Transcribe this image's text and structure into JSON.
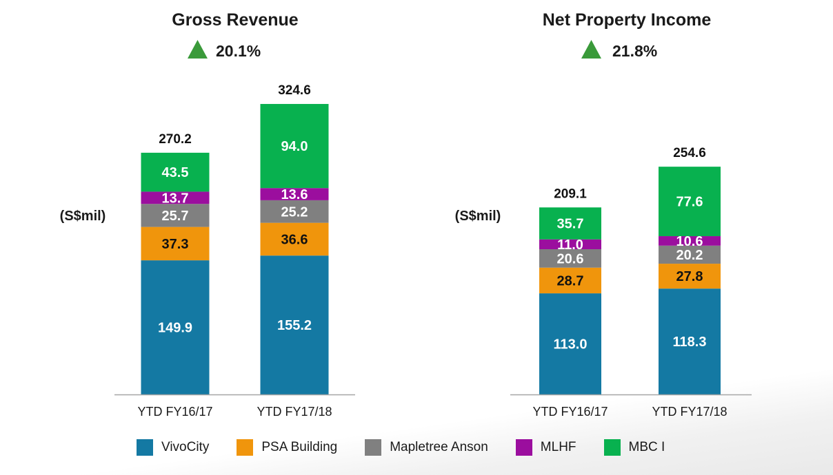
{
  "chart_data": [
    {
      "type": "bar",
      "stacked": true,
      "title": "Gross Revenue",
      "growth": "20.1%",
      "ylabel": "(S$mil)",
      "categories": [
        "YTD FY16/17",
        "YTD FY17/18"
      ],
      "totals": [
        "270.2",
        "324.6"
      ],
      "ylim": [
        0,
        340
      ],
      "series": [
        {
          "name": "VivoCity",
          "values": [
            149.9,
            155.2
          ]
        },
        {
          "name": "PSA Building",
          "values": [
            37.3,
            36.6
          ]
        },
        {
          "name": "Mapletree Anson",
          "values": [
            25.7,
            25.2
          ]
        },
        {
          "name": "MLHF",
          "values": [
            13.7,
            13.6
          ]
        },
        {
          "name": "MBC I",
          "values": [
            43.5,
            94.0
          ]
        }
      ]
    },
    {
      "type": "bar",
      "stacked": true,
      "title": "Net Property Income",
      "growth": "21.8%",
      "ylabel": "(S$mil)",
      "categories": [
        "YTD FY16/17",
        "YTD FY17/18"
      ],
      "totals": [
        "209.1",
        "254.6"
      ],
      "ylim": [
        0,
        270
      ],
      "series": [
        {
          "name": "VivoCity",
          "values": [
            113.0,
            118.3
          ]
        },
        {
          "name": "PSA Building",
          "values": [
            28.7,
            27.8
          ]
        },
        {
          "name": "Mapletree Anson",
          "values": [
            20.6,
            20.2
          ]
        },
        {
          "name": "MLHF",
          "values": [
            11.0,
            10.6
          ]
        },
        {
          "name": "MBC I",
          "values": [
            35.7,
            77.6
          ]
        }
      ]
    }
  ],
  "legend": [
    {
      "name": "VivoCity",
      "color": "#1479a3"
    },
    {
      "name": "PSA Building",
      "color": "#f0950c"
    },
    {
      "name": "Mapletree Anson",
      "color": "#808080"
    },
    {
      "name": "MLHF",
      "color": "#9b0e9e"
    },
    {
      "name": "MBC I",
      "color": "#08b14f"
    }
  ],
  "colors": {
    "growth_arrow": "#3a9a3a",
    "axis": "#a6a6a6"
  }
}
